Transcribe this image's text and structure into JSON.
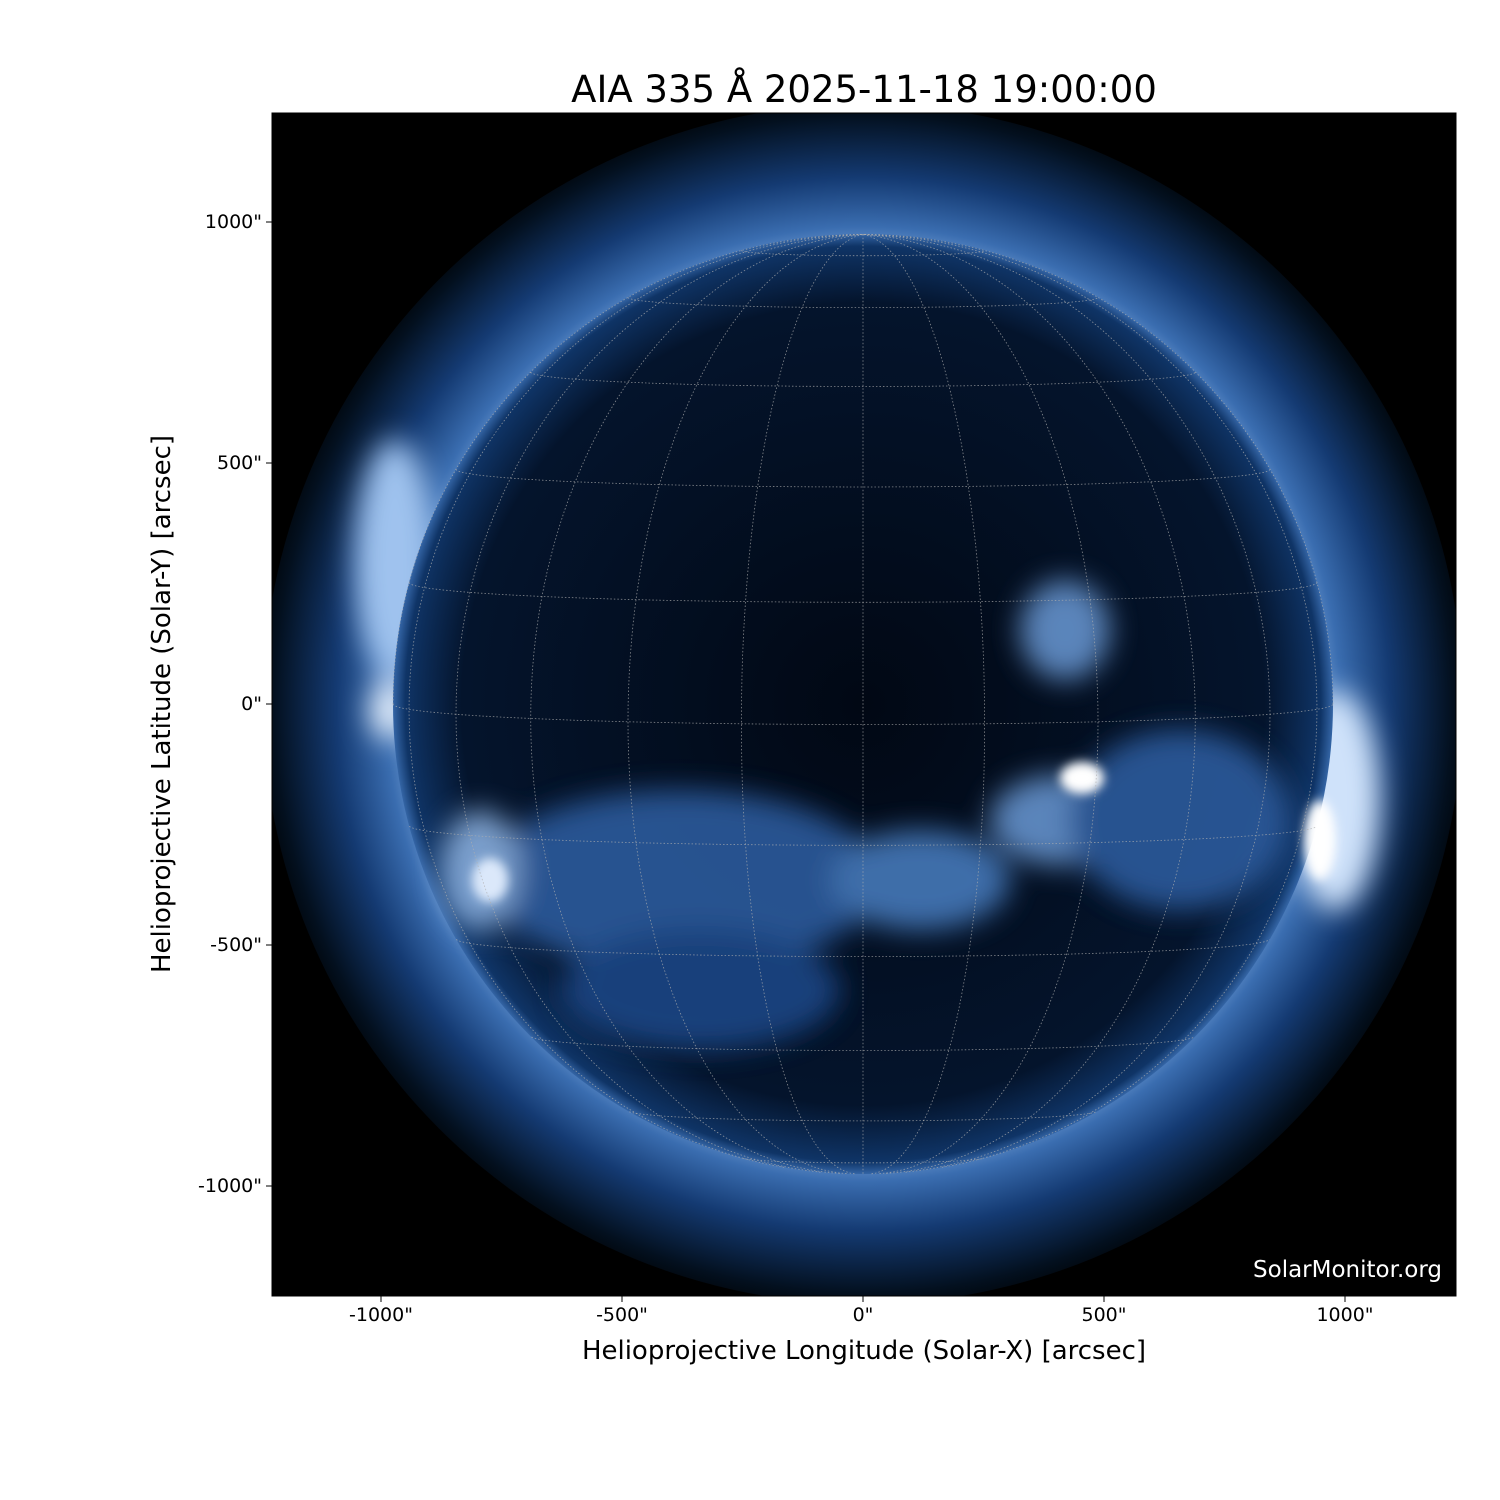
{
  "title": "AIA 335 Å 2025-11-18 19:00:00",
  "xlabel": "Helioprojective Longitude (Solar-X) [arcsec]",
  "ylabel": "Helioprojective Latitude (Solar-Y) [arcsec]",
  "watermark": "SolarMonitor.org",
  "x_ticks": [
    "-1000\"",
    "-500\"",
    "0\"",
    "500\"",
    "1000\""
  ],
  "y_ticks": [
    "1000\"",
    "500\"",
    "0\"",
    "-500\"",
    "-1000\""
  ],
  "x_tick_values": [
    -1000,
    -500,
    0,
    500,
    1000
  ],
  "y_tick_values": [
    1000,
    500,
    0,
    -500,
    -1000
  ],
  "xlim": [
    -1230,
    1230
  ],
  "ylim": [
    -1230,
    1230
  ],
  "colormap": [
    "#000000",
    "#0b2a5a",
    "#2d5fa3",
    "#8fb6e6",
    "#ffffff"
  ],
  "grid_color": "#b0b0b0",
  "grid_spacing_deg": 15
}
